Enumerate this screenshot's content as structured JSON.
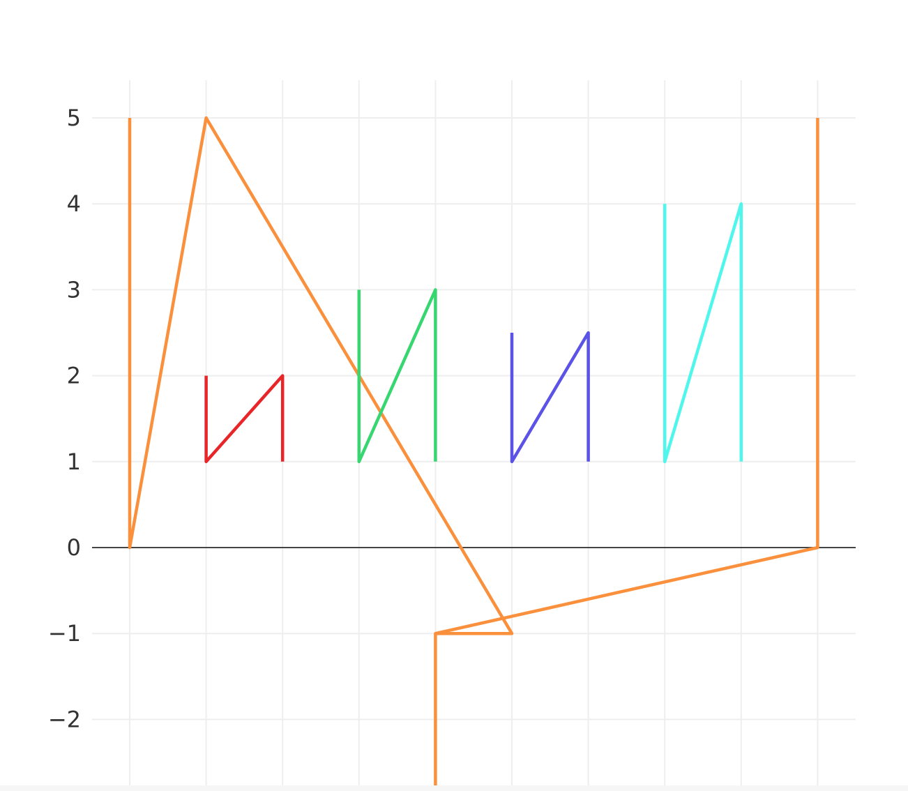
{
  "chart_data": {
    "type": "line",
    "title": "",
    "xlabel": "",
    "ylabel": "",
    "xlim": [
      0,
      9
    ],
    "ylim": [
      -2.83,
      5.44
    ],
    "x_ticks": [
      0,
      1,
      2,
      3,
      4,
      5,
      6,
      7,
      8,
      9
    ],
    "y_ticks": [
      {
        "value": 5,
        "label": "5"
      },
      {
        "value": 4,
        "label": "4"
      },
      {
        "value": 3,
        "label": "3"
      },
      {
        "value": 2,
        "label": "2"
      },
      {
        "value": 1,
        "label": "1"
      },
      {
        "value": 0,
        "label": "0"
      },
      {
        "value": -1,
        "label": "−1"
      },
      {
        "value": -2,
        "label": "−2"
      }
    ],
    "grid": true,
    "legend": "none",
    "zeroline_color": "#444444",
    "grid_color": "#eeeeee",
    "series": [
      {
        "color": "#fa8f3c",
        "x": [
          0,
          0,
          1,
          5,
          4,
          4
        ],
        "y": [
          5,
          0,
          5,
          -1,
          -1,
          -2.83
        ]
      },
      {
        "color": "#fa8f3c",
        "x": [
          4,
          9,
          9
        ],
        "y": [
          -1,
          0,
          5
        ]
      },
      {
        "color": "#e8262a",
        "x": [
          1,
          1,
          2,
          2
        ],
        "y": [
          2,
          1,
          2,
          1
        ]
      },
      {
        "color": "#36d670",
        "x": [
          3,
          3,
          4,
          4
        ],
        "y": [
          3,
          1,
          3,
          1
        ]
      },
      {
        "color": "#5b53e6",
        "x": [
          5,
          5,
          6,
          6
        ],
        "y": [
          2.5,
          1,
          2.5,
          1
        ]
      },
      {
        "color": "#4ff6ec",
        "x": [
          7,
          7,
          8,
          8
        ],
        "y": [
          4,
          1,
          4,
          1
        ]
      }
    ]
  }
}
